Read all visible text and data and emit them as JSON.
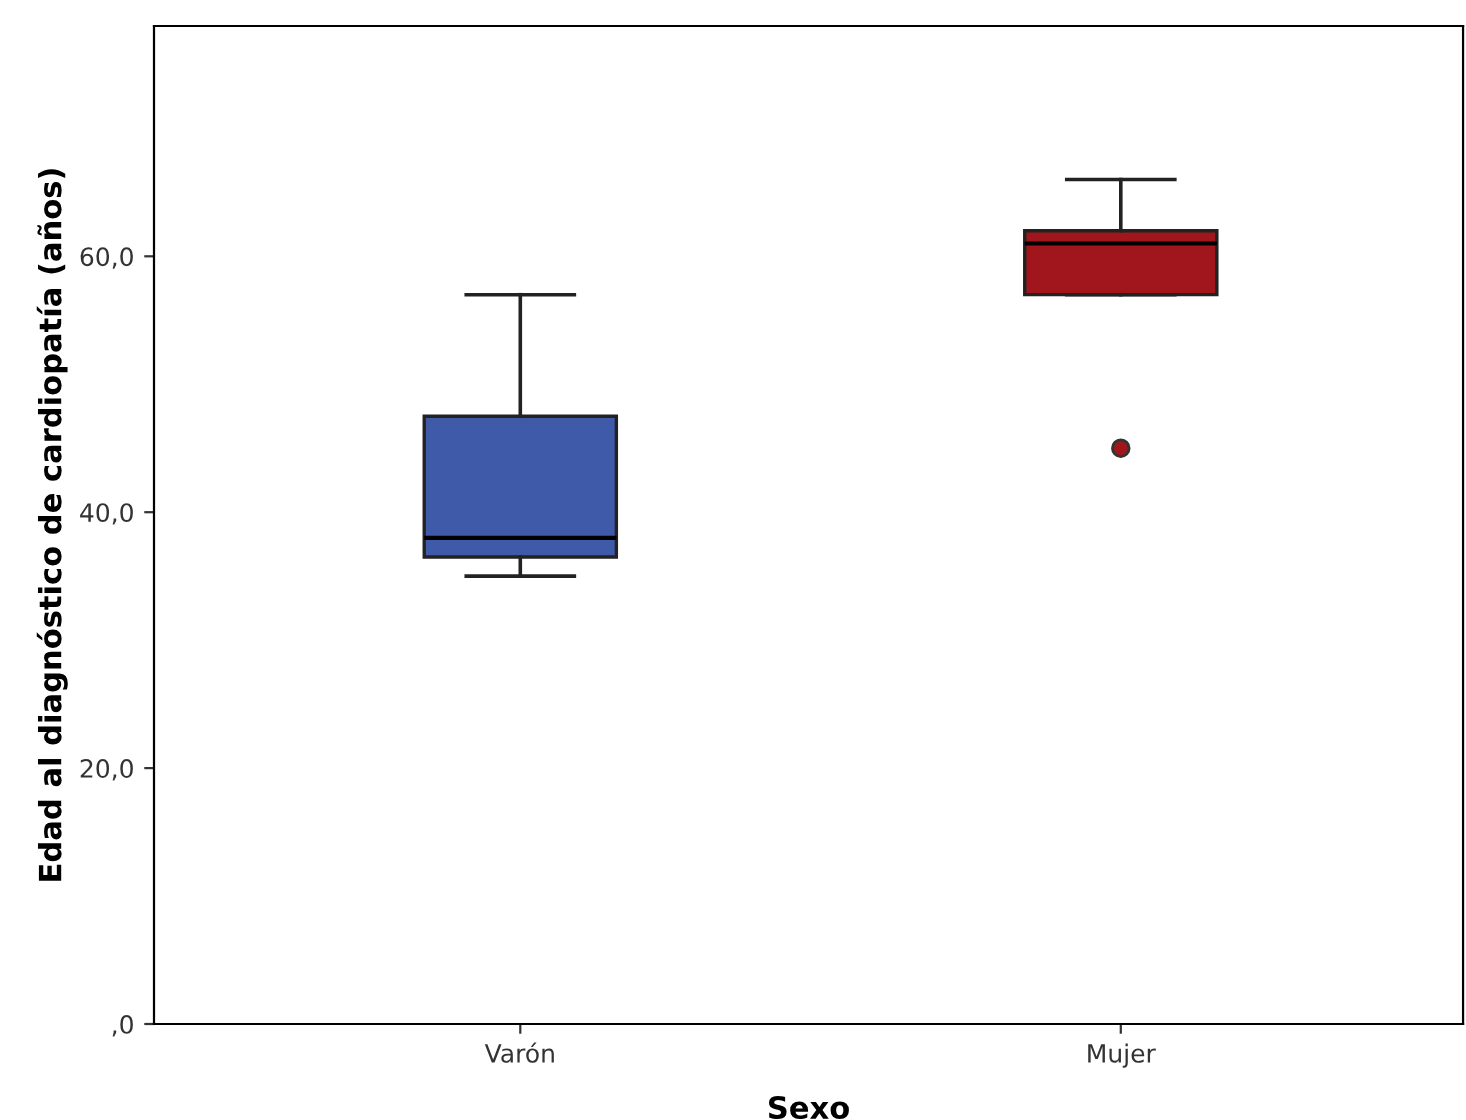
{
  "chart_data": {
    "type": "box",
    "xlabel": "Sexo",
    "ylabel": "Edad al diagnóstico de cardiopatía (años)",
    "categories": [
      "Varón",
      "Mujer"
    ],
    "boxes": [
      {
        "low": 35,
        "q1": 36.5,
        "median": 38,
        "q3": 47.5,
        "high": 57
      },
      {
        "low": 57,
        "q1": 57,
        "median": 61,
        "q3": 62,
        "high": 66,
        "outliers": [
          45
        ]
      }
    ],
    "colors": [
      "#3f5aa8",
      "#a0161c"
    ],
    "ylim": [
      0,
      78
    ],
    "yticks": [
      {
        "value": 0,
        "label": ",0"
      },
      {
        "value": 20,
        "label": "20,0"
      },
      {
        "value": 40,
        "label": "40,0"
      },
      {
        "value": 60,
        "label": "60,0"
      }
    ],
    "grid": false
  }
}
